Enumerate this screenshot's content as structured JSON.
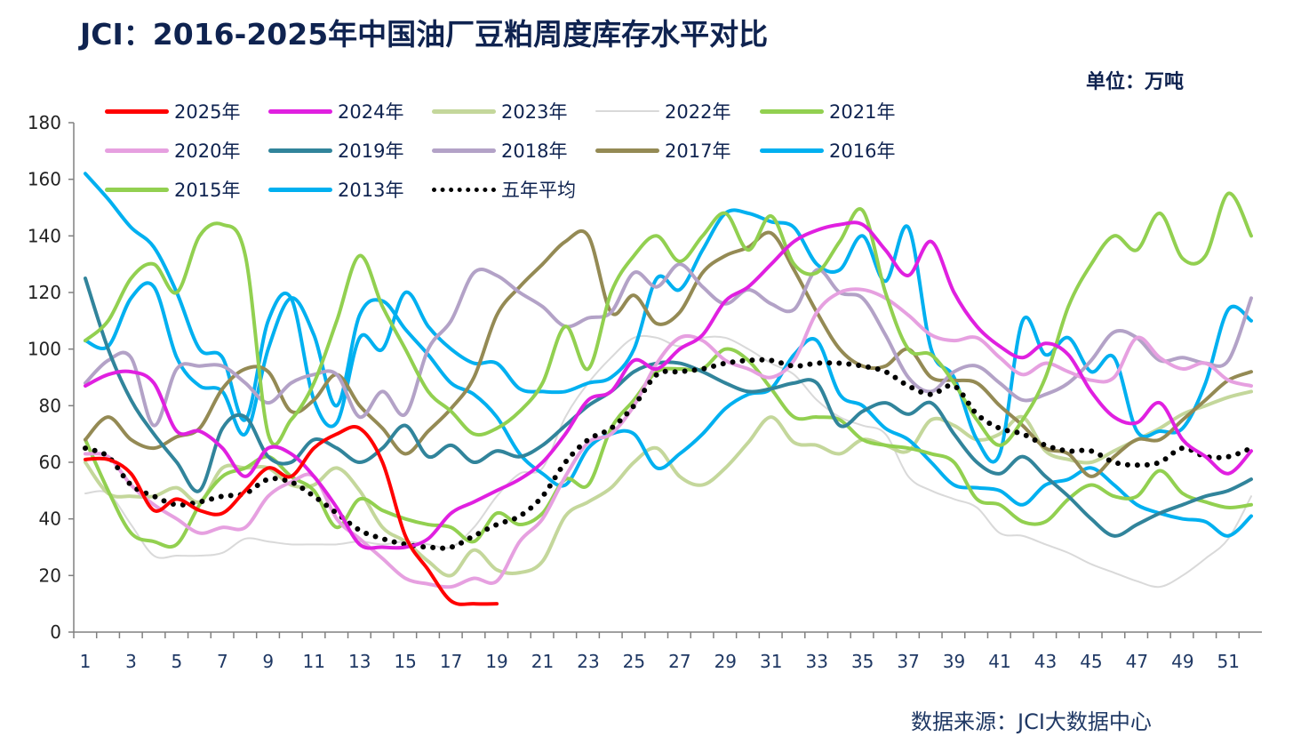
{
  "header": {
    "title": "JCI：2016-2025年中国油厂豆粕周度库存水平对比",
    "unit": "单位：万吨",
    "source": "数据来源：JCI大数据中心"
  },
  "chart_data": {
    "type": "line",
    "title": "JCI：2016-2025年中国油厂豆粕周度库存水平对比",
    "xlabel": "",
    "ylabel": "万吨",
    "ylim": [
      0,
      180
    ],
    "yticks": [
      0,
      20,
      40,
      60,
      80,
      100,
      120,
      140,
      160,
      180
    ],
    "xlim": [
      1,
      52
    ],
    "xticks": [
      1,
      3,
      5,
      7,
      9,
      11,
      13,
      15,
      17,
      19,
      21,
      23,
      25,
      27,
      29,
      31,
      33,
      35,
      37,
      39,
      41,
      43,
      45,
      47,
      49,
      51
    ],
    "legend": "top",
    "series": [
      {
        "name": "2025年",
        "color": "#FF0000",
        "values": [
          61,
          61,
          56,
          43,
          47,
          43,
          42,
          50,
          58,
          55,
          65,
          70,
          72,
          60,
          34,
          22,
          11,
          10,
          10
        ]
      },
      {
        "name": "2024年",
        "color": "#E020E0",
        "values": [
          87,
          91,
          92,
          88,
          71,
          71,
          65,
          55,
          65,
          63,
          55,
          44,
          31,
          30,
          30,
          33,
          42,
          46,
          50,
          54,
          60,
          70,
          82,
          85,
          96,
          93,
          100,
          105,
          117,
          122,
          130,
          138,
          142,
          144,
          144,
          135,
          126,
          138,
          120,
          108,
          101,
          97,
          102,
          98,
          85,
          76,
          74,
          81,
          68,
          62,
          56,
          64
        ]
      },
      {
        "name": "2023年",
        "color": "#C4D79B",
        "values": [
          60,
          49,
          48,
          48,
          51,
          46,
          58,
          58,
          58,
          52,
          52,
          58,
          50,
          37,
          32,
          25,
          20,
          29,
          22,
          21,
          25,
          41,
          46,
          51,
          60,
          65,
          55,
          52,
          58,
          67,
          76,
          67,
          66,
          63,
          68,
          66,
          64,
          75,
          73,
          68,
          70,
          76,
          64,
          61,
          60,
          64,
          68,
          72,
          77,
          80,
          83,
          85
        ]
      },
      {
        "name": "2022年",
        "color": "#D9D9D9",
        "values": [
          49,
          49,
          38,
          27,
          27,
          27,
          28,
          33,
          32,
          31,
          31,
          31,
          32,
          31,
          32,
          31,
          30,
          37,
          48,
          56,
          58,
          76,
          88,
          97,
          104,
          104,
          101,
          104,
          104,
          100,
          95,
          91,
          82,
          76,
          73,
          70,
          55,
          50,
          47,
          44,
          35,
          34,
          31,
          28,
          24,
          21,
          18,
          16,
          20,
          26,
          33,
          48
        ]
      },
      {
        "name": "2021年",
        "color": "#92D050",
        "values": [
          103,
          110,
          125,
          130,
          120,
          140,
          144,
          133,
          70,
          75,
          88,
          110,
          133,
          115,
          100,
          85,
          78,
          70,
          72,
          78,
          88,
          108,
          93,
          120,
          133,
          140,
          131,
          140,
          148,
          135,
          147,
          130,
          127,
          138,
          149,
          120,
          100,
          98,
          88,
          75,
          66,
          75,
          90,
          115,
          130,
          140,
          135,
          148,
          132,
          133,
          155,
          140
        ]
      },
      {
        "name": "2020年",
        "color": "#E6A0E0",
        "values": [
          63,
          62,
          52,
          45,
          40,
          35,
          37,
          37,
          48,
          53,
          55,
          40,
          33,
          26,
          19,
          17,
          16,
          19,
          18,
          32,
          40,
          55,
          67,
          70,
          80,
          95,
          104,
          103,
          96,
          93,
          90,
          96,
          113,
          120,
          121,
          118,
          112,
          105,
          103,
          104,
          97,
          91,
          95,
          92,
          89,
          90,
          104,
          97,
          93,
          95,
          89,
          87
        ]
      },
      {
        "name": "2019年",
        "color": "#31849B",
        "values": [
          125,
          100,
          82,
          70,
          60,
          50,
          72,
          76,
          62,
          60,
          68,
          65,
          60,
          65,
          73,
          62,
          66,
          60,
          64,
          62,
          66,
          73,
          80,
          85,
          92,
          95,
          95,
          92,
          88,
          85,
          86,
          88,
          88,
          73,
          78,
          81,
          77,
          81,
          70,
          60,
          56,
          62,
          55,
          48,
          40,
          34,
          38,
          42,
          45,
          48,
          50,
          54
        ]
      },
      {
        "name": "2018年",
        "color": "#B3A2C7",
        "values": [
          88,
          96,
          97,
          73,
          93,
          94,
          94,
          88,
          81,
          88,
          91,
          91,
          76,
          85,
          77,
          100,
          110,
          127,
          126,
          120,
          115,
          108,
          111,
          113,
          127,
          122,
          130,
          122,
          116,
          121,
          116,
          114,
          128,
          120,
          118,
          105,
          90,
          85,
          92,
          94,
          88,
          82,
          84,
          88,
          96,
          106,
          104,
          96,
          97,
          95,
          96,
          118
        ]
      },
      {
        "name": "2017年",
        "color": "#948A54",
        "values": [
          68,
          76,
          68,
          65,
          69,
          72,
          86,
          93,
          92,
          78,
          82,
          91,
          80,
          72,
          63,
          71,
          79,
          90,
          112,
          122,
          130,
          138,
          140,
          113,
          119,
          109,
          113,
          127,
          133,
          136,
          141,
          128,
          113,
          100,
          94,
          94,
          100,
          90,
          89,
          88,
          80,
          73,
          65,
          63,
          55,
          62,
          68,
          68,
          75,
          82,
          89,
          92
        ]
      },
      {
        "name": "2016年",
        "color": "#00B0F0",
        "values": [
          162,
          153,
          143,
          136,
          120,
          100,
          97,
          75,
          110,
          118,
          82,
          74,
          104,
          100,
          120,
          108,
          100,
          95,
          95,
          86,
          85,
          85,
          88,
          90,
          100,
          125,
          121,
          135,
          148,
          148,
          145,
          143,
          130,
          128,
          140,
          124,
          143,
          100,
          90,
          68,
          63,
          110,
          98,
          104,
          92,
          97,
          71,
          71,
          72,
          88,
          114,
          110
        ]
      },
      {
        "name": "2015年",
        "color": "#92D050",
        "values": [
          68,
          50,
          35,
          32,
          31,
          45,
          55,
          58,
          62,
          55,
          50,
          37,
          47,
          43,
          40,
          38,
          37,
          32,
          42,
          38,
          42,
          54,
          52,
          72,
          82,
          92,
          93,
          93,
          100,
          96,
          86,
          76,
          76,
          75,
          68,
          66,
          65,
          63,
          60,
          47,
          45,
          39,
          39,
          47,
          52,
          48,
          48,
          57,
          49,
          46,
          44,
          45
        ]
      },
      {
        "name": "2013年",
        "color": "#00B0F0",
        "values": [
          103,
          101,
          118,
          122,
          97,
          87,
          85,
          70,
          100,
          118,
          105,
          80,
          112,
          117,
          107,
          98,
          88,
          84,
          76,
          63,
          56,
          52,
          65,
          70,
          70,
          58,
          63,
          70,
          79,
          84,
          86,
          98,
          103,
          84,
          80,
          72,
          68,
          60,
          52,
          51,
          50,
          45,
          52,
          54,
          58,
          52,
          45,
          42,
          40,
          39,
          34,
          41
        ]
      },
      {
        "name": "五年平均",
        "color": "#000000",
        "dotted": true,
        "values": [
          65,
          62,
          52,
          48,
          45,
          46,
          48,
          49,
          54,
          53,
          48,
          42,
          36,
          33,
          31,
          30,
          30,
          34,
          38,
          41,
          48,
          60,
          68,
          72,
          80,
          91,
          92,
          93,
          95,
          96,
          96,
          94,
          95,
          95,
          94,
          92,
          87,
          84,
          87,
          77,
          72,
          70,
          66,
          64,
          64,
          60,
          59,
          60,
          65,
          62,
          62,
          65
        ]
      }
    ]
  }
}
